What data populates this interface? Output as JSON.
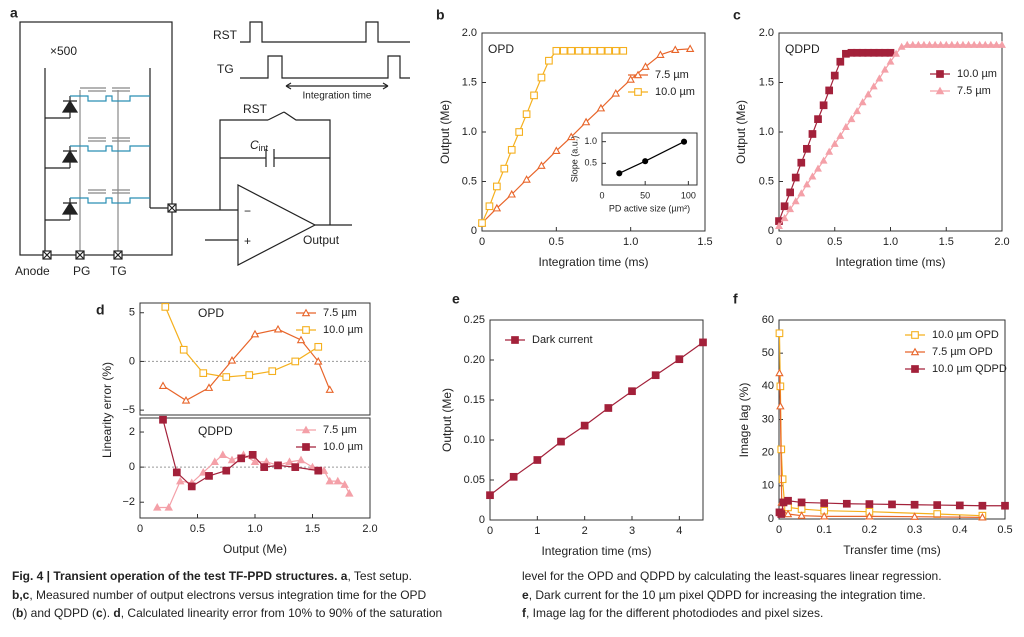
{
  "diagram": {
    "panel_label": "a",
    "multiplier": "×500",
    "rst_timing": "RST",
    "tg_timing": "TG",
    "integration": "Integration time",
    "rst_switch": "RST",
    "cint": "C",
    "cint_sub": "int",
    "minus": "−",
    "plus": "+",
    "output": "Output",
    "anode": "Anode",
    "pg": "PG",
    "tg": "TG"
  },
  "chart_data": [
    {
      "type": "line",
      "panel_label": "b",
      "title": "OPD",
      "xlabel": "Integration time (ms)",
      "ylabel": "Output (Me)",
      "xlim": [
        0,
        1.5
      ],
      "xticks": [
        0,
        0.5,
        {
          "value": 1,
          "label": "1.0"
        },
        1.5
      ],
      "ylim": [
        0,
        2
      ],
      "yticks": [
        0,
        0.5,
        {
          "value": 1,
          "label": "1.0"
        },
        1.5,
        {
          "value": 2,
          "label": "2.0"
        }
      ],
      "legend": "center right",
      "series": [
        {
          "name": "7.5 µm",
          "color": "#e8652a",
          "marker": "triangle",
          "fill": "open",
          "x": [
            0,
            0.1,
            0.2,
            0.3,
            0.4,
            0.5,
            0.6,
            0.7,
            0.8,
            0.9,
            1.0,
            1.1,
            1.2,
            1.3,
            1.4
          ],
          "values": [
            0.08,
            0.23,
            0.37,
            0.52,
            0.66,
            0.81,
            0.95,
            1.1,
            1.24,
            1.39,
            1.53,
            1.66,
            1.78,
            1.83,
            1.84
          ]
        },
        {
          "name": "10.0 µm",
          "color": "#f5b01e",
          "marker": "square",
          "fill": "open",
          "x": [
            0,
            0.05,
            0.1,
            0.15,
            0.2,
            0.25,
            0.3,
            0.35,
            0.4,
            0.45,
            0.5,
            0.55,
            0.6,
            0.65,
            0.7,
            0.75,
            0.8,
            0.85,
            0.9,
            0.95
          ],
          "values": [
            0.08,
            0.25,
            0.45,
            0.63,
            0.82,
            1.0,
            1.18,
            1.37,
            1.55,
            1.72,
            1.82,
            1.82,
            1.82,
            1.82,
            1.82,
            1.82,
            1.82,
            1.82,
            1.82,
            1.82
          ]
        }
      ]
    },
    {
      "type": "scatter",
      "xlabel": "PD active size (µm²)",
      "ylabel": "Slope (a.u.)",
      "xlim": [
        0,
        110
      ],
      "xticks": [
        0,
        50,
        100
      ],
      "ylim": [
        0,
        1.2
      ],
      "yticks": [
        0.5,
        {
          "value": 1,
          "label": "1.0"
        }
      ],
      "connect": true,
      "series": [
        {
          "color": "#000000",
          "marker": "circle",
          "fill": "filled",
          "x": [
            20,
            50,
            95
          ],
          "values": [
            0.27,
            0.55,
            1.0
          ]
        }
      ]
    },
    {
      "type": "line",
      "panel_label": "c",
      "title": "QDPD",
      "xlabel": "Integration time (ms)",
      "ylabel": "Output (Me)",
      "xlim": [
        0,
        2
      ],
      "xticks": [
        0,
        0.5,
        {
          "value": 1,
          "label": "1.0"
        },
        1.5,
        {
          "value": 2,
          "label": "2.0"
        }
      ],
      "ylim": [
        0,
        2
      ],
      "yticks": [
        0,
        0.5,
        {
          "value": 1,
          "label": "1.0"
        },
        1.5,
        {
          "value": 2,
          "label": "2.0"
        }
      ],
      "legend": "center right",
      "series": [
        {
          "name": "10.0 µm",
          "color": "#a3213a",
          "marker": "square",
          "fill": "filled",
          "x": [
            0,
            0.05,
            0.1,
            0.15,
            0.2,
            0.25,
            0.3,
            0.35,
            0.4,
            0.45,
            0.5,
            0.55,
            0.6,
            0.65,
            0.7,
            0.75,
            0.8,
            0.85,
            0.9,
            0.95,
            1.0
          ],
          "values": [
            0.1,
            0.25,
            0.39,
            0.54,
            0.69,
            0.83,
            0.98,
            1.13,
            1.27,
            1.42,
            1.57,
            1.71,
            1.79,
            1.8,
            1.8,
            1.8,
            1.8,
            1.8,
            1.8,
            1.8,
            1.8
          ]
        },
        {
          "name": "7.5 µm",
          "color": "#f4a0a8",
          "marker": "triangle",
          "fill": "filled",
          "x": [
            0,
            0.05,
            0.1,
            0.15,
            0.2,
            0.25,
            0.3,
            0.35,
            0.4,
            0.45,
            0.5,
            0.55,
            0.6,
            0.65,
            0.7,
            0.75,
            0.8,
            0.85,
            0.9,
            0.95,
            1.0,
            1.05,
            1.1,
            1.15,
            1.2,
            1.25,
            1.3,
            1.35,
            1.4,
            1.45,
            1.5,
            1.55,
            1.6,
            1.65,
            1.7,
            1.75,
            1.8,
            1.85,
            1.9,
            1.95,
            2.0
          ],
          "values": [
            0.05,
            0.13,
            0.22,
            0.3,
            0.38,
            0.47,
            0.55,
            0.63,
            0.71,
            0.8,
            0.88,
            0.96,
            1.05,
            1.13,
            1.21,
            1.3,
            1.38,
            1.46,
            1.54,
            1.63,
            1.71,
            1.79,
            1.86,
            1.88,
            1.88,
            1.88,
            1.88,
            1.88,
            1.88,
            1.88,
            1.88,
            1.88,
            1.88,
            1.88,
            1.88,
            1.88,
            1.88,
            1.88,
            1.88,
            1.88,
            1.88
          ]
        }
      ]
    },
    {
      "type": "line",
      "panel_label": "d",
      "title": "OPD",
      "ylabel": "Linearity error (%)",
      "xlim": [
        0,
        2
      ],
      "ylim": [
        -5.5,
        6
      ],
      "yticks": [
        {
          "value": -5,
          "label": "−5"
        },
        0,
        5
      ],
      "zero_line": true,
      "legend": "upper right",
      "series": [
        {
          "name": "7.5 µm",
          "color": "#e8652a",
          "marker": "triangle",
          "fill": "open",
          "x": [
            0.2,
            0.4,
            0.6,
            0.8,
            1.0,
            1.2,
            1.4,
            1.55,
            1.65
          ],
          "values": [
            -2.5,
            -4,
            -2.7,
            0.1,
            2.8,
            3.3,
            2.2,
            0,
            -2.9
          ]
        },
        {
          "name": "10.0 µm",
          "color": "#f5b01e",
          "marker": "square",
          "fill": "open",
          "x": [
            0.22,
            0.38,
            0.55,
            0.75,
            0.95,
            1.15,
            1.35,
            1.55
          ],
          "values": [
            5.6,
            1.2,
            -1.2,
            -1.6,
            -1.4,
            -1,
            0,
            1.5
          ]
        }
      ]
    },
    {
      "type": "line",
      "title": "QDPD",
      "xlabel": "Output (Me)",
      "xlim": [
        0,
        2
      ],
      "xticks": [
        0,
        0.5,
        {
          "value": 1,
          "label": "1.0"
        },
        1.5,
        {
          "value": 2,
          "label": "2.0"
        }
      ],
      "ylim": [
        -2.9,
        2.8
      ],
      "yticks": [
        {
          "value": -2,
          "label": "−2"
        },
        0,
        2
      ],
      "zero_line": true,
      "legend": "upper right",
      "series": [
        {
          "name": "7.5 µm",
          "color": "#f4a0a8",
          "marker": "triangle",
          "fill": "filled",
          "x": [
            0.15,
            0.25,
            0.35,
            0.45,
            0.55,
            0.65,
            0.72,
            0.8,
            0.9,
            1.0,
            1.1,
            1.2,
            1.3,
            1.4,
            1.5,
            1.6,
            1.65,
            1.72,
            1.78,
            1.82
          ],
          "values": [
            -2.3,
            -2.3,
            -0.8,
            -0.9,
            -0.3,
            0.3,
            0.7,
            0.4,
            0.7,
            0.3,
            0.3,
            0.1,
            0.3,
            0.4,
            0,
            -0.2,
            -0.8,
            -0.8,
            -1,
            -1.5
          ]
        },
        {
          "name": "10.0 µm",
          "color": "#a3213a",
          "marker": "square",
          "fill": "filled",
          "x": [
            0.2,
            0.32,
            0.45,
            0.6,
            0.75,
            0.88,
            0.98,
            1.08,
            1.2,
            1.35,
            1.55
          ],
          "values": [
            2.7,
            -0.3,
            -1.1,
            -0.5,
            -0.2,
            0.5,
            0.7,
            0,
            0.1,
            0,
            -0.2
          ]
        }
      ]
    },
    {
      "type": "line",
      "panel_label": "e",
      "xlabel": "Integration time (ms)",
      "ylabel": "Output (Me)",
      "xlim": [
        0,
        4.5
      ],
      "xticks": [
        0,
        1,
        2,
        3,
        4
      ],
      "ylim": [
        0,
        0.25
      ],
      "yticks": [
        0,
        0.05,
        {
          "value": 0.1,
          "label": "0.10"
        },
        0.15,
        {
          "value": 0.2,
          "label": "0.20"
        },
        0.25
      ],
      "legend": "upper left",
      "series": [
        {
          "name": "Dark current",
          "color": "#a3213a",
          "marker": "square",
          "fill": "filled",
          "x": [
            0,
            0.5,
            1,
            1.5,
            2,
            2.5,
            3,
            3.5,
            4,
            4.5
          ],
          "values": [
            0.031,
            0.054,
            0.075,
            0.098,
            0.118,
            0.14,
            0.161,
            0.181,
            0.201,
            0.222
          ]
        }
      ]
    },
    {
      "type": "line",
      "panel_label": "f",
      "xlabel": "Transfer time (ms)",
      "ylabel": "Image lag (%)",
      "xlim": [
        0,
        0.5
      ],
      "xticks": [
        0,
        0.1,
        0.2,
        0.3,
        0.4,
        0.5
      ],
      "ylim": [
        0,
        60
      ],
      "yticks": [
        0,
        10,
        20,
        30,
        40,
        50,
        60
      ],
      "legend": "upper right",
      "series": [
        {
          "name": "10.0 µm OPD",
          "color": "#f5b01e",
          "marker": "square",
          "fill": "open",
          "x": [
            0.001,
            0.003,
            0.005,
            0.008,
            0.012,
            0.02,
            0.05,
            0.1,
            0.2,
            0.35,
            0.45
          ],
          "values": [
            56,
            40,
            21,
            12,
            5,
            3.5,
            3,
            2.5,
            2.2,
            1.5,
            1
          ]
        },
        {
          "name": "7.5 µm OPD",
          "color": "#e8652a",
          "marker": "triangle",
          "fill": "open",
          "x": [
            0.001,
            0.003,
            0.006,
            0.01,
            0.02,
            0.05,
            0.1,
            0.2,
            0.3,
            0.45
          ],
          "values": [
            44,
            34,
            5,
            2,
            1.5,
            1,
            0.8,
            0.8,
            0.7,
            0.5
          ]
        },
        {
          "name": "10.0 µm QDPD",
          "color": "#a3213a",
          "marker": "square",
          "fill": "filled",
          "x": [
            0.001,
            0.005,
            0.01,
            0.02,
            0.05,
            0.1,
            0.15,
            0.2,
            0.25,
            0.3,
            0.35,
            0.4,
            0.45,
            0.5
          ],
          "values": [
            2,
            1.5,
            5,
            5.5,
            5,
            4.8,
            4.6,
            4.5,
            4.4,
            4.3,
            4.2,
            4.1,
            4.0,
            4.0
          ]
        }
      ]
    }
  ],
  "caption": {
    "left": [
      [
        {
          "text": "Fig. 4 | Transient operation of the test TF-PPD structures.",
          "bold": true
        },
        {
          "text": " "
        },
        {
          "text": "a",
          "bold": true
        },
        {
          "text": ", Test setup."
        }
      ],
      [
        {
          "text": "b,c",
          "bold": true
        },
        {
          "text": ", Measured number of output electrons versus integration time for the OPD"
        }
      ],
      [
        {
          "text": "("
        },
        {
          "text": "b",
          "bold": true
        },
        {
          "text": ") and QDPD ("
        },
        {
          "text": "c",
          "bold": true
        },
        {
          "text": "). "
        },
        {
          "text": "d",
          "bold": true
        },
        {
          "text": ", Calculated linearity error from 10% to 90% of the saturation"
        }
      ]
    ],
    "right": [
      [
        {
          "text": "level for the OPD and QDPD by calculating the least-squares linear regression."
        }
      ],
      [
        {
          "text": "e",
          "bold": true
        },
        {
          "text": ", Dark current for the 10 µm pixel QDPD for increasing the integration time."
        }
      ],
      [
        {
          "text": "f",
          "bold": true
        },
        {
          "text": ", Image lag for the different photodiodes and pixel sizes."
        }
      ]
    ]
  }
}
